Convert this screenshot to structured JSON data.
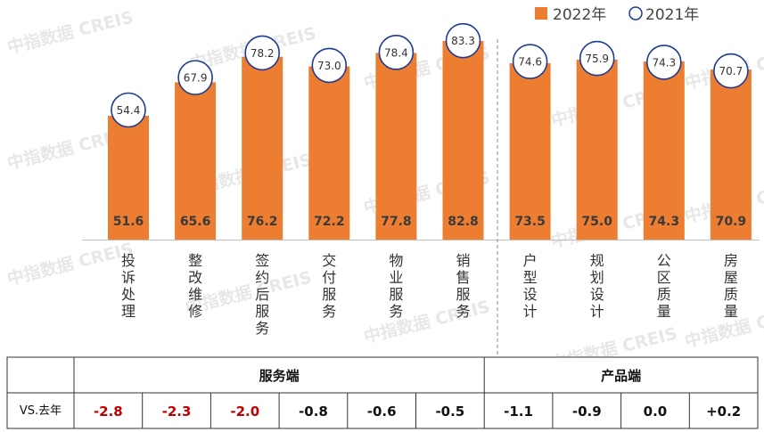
{
  "watermark": "中指数据 CREIS",
  "legend": {
    "items": [
      {
        "label": "2022年",
        "color": "#ED7D31",
        "shape": "square"
      },
      {
        "label": "2021年",
        "color": "#1F3A93",
        "shape": "circle"
      }
    ]
  },
  "chart_data": {
    "type": "bar",
    "categories": [
      "投诉处理",
      "整改维修",
      "签约后服务",
      "交付服务",
      "物业服务",
      "销售服务",
      "户型设计",
      "规划设计",
      "公区质量",
      "房屋质量"
    ],
    "series": [
      {
        "name": "2022年",
        "values": [
          51.6,
          65.6,
          76.2,
          72.2,
          77.8,
          82.8,
          73.5,
          75.0,
          74.3,
          70.9
        ],
        "labels": [
          "51.6",
          "65.6",
          "76.2",
          "72.2",
          "77.8",
          "82.8",
          "73.5",
          "75.0",
          "74.3",
          "70.9"
        ]
      },
      {
        "name": "2021年",
        "values": [
          54.4,
          67.9,
          78.2,
          73.0,
          78.4,
          83.3,
          74.6,
          75.9,
          74.3,
          70.7
        ],
        "labels": [
          "54.4",
          "67.9",
          "78.2",
          "73.0",
          "78.4",
          "83.3",
          "74.6",
          "75.9",
          "74.3",
          "70.7"
        ]
      }
    ],
    "ylim": [
      0,
      85
    ],
    "divider_after_index": 5,
    "colors": {
      "bar": "#ED7D31",
      "circle_stroke": "#1F3A93"
    }
  },
  "table": {
    "groups": [
      {
        "label": "服务端",
        "span": 6
      },
      {
        "label": "产品端",
        "span": 4
      }
    ],
    "row_label": "VS.去年",
    "values": [
      "-2.8",
      "-2.3",
      "-2.0",
      "-0.8",
      "-0.6",
      "-0.5",
      "-1.1",
      "-0.9",
      "0.0",
      "+0.2"
    ],
    "highlight_color": "#C00000",
    "normal_color": "#111111",
    "highlight_count": 3
  }
}
